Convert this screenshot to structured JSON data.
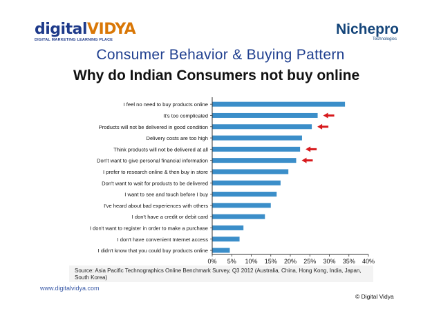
{
  "header": {
    "logo_left": {
      "word_a": "digital",
      "word_b": "VIDYA",
      "tagline": "DIGITAL MARKETING LEARNING PLACE"
    },
    "logo_right": {
      "word": "Nichepro",
      "sub": "Technologies"
    },
    "slide_title": "Consumer Behavior & Buying Pattern"
  },
  "chart_data": {
    "type": "bar",
    "orientation": "horizontal",
    "title": "Why do Indian Consumers not buy online",
    "categories": [
      "I feel no need to buy products online",
      "It's too complicated",
      "Products will not be delivered in good condition",
      "Delivery costs are too high",
      "Think products will not be delivered at all",
      "Don't want to give personal financial information",
      "I prefer to research online & then buy in store",
      "Don't want to wait for products to be delivered",
      "I want to see and touch before I buy",
      "I've heard about bad experiences with others",
      "I don't have a credit or debit card",
      "I don't want to register in order to make a purchase",
      "I don't have convenient Internet access",
      "I didn't know that you could buy products online"
    ],
    "values": [
      34,
      27,
      25.5,
      23,
      22.5,
      21.5,
      19.5,
      17.5,
      16.5,
      15,
      13.5,
      8,
      7,
      4.5
    ],
    "highlighted": [
      false,
      true,
      true,
      false,
      true,
      true,
      false,
      false,
      false,
      false,
      false,
      false,
      false,
      false
    ],
    "xlim": [
      0,
      40
    ],
    "xticks": [
      "0%",
      "5%",
      "10%",
      "15%",
      "20%",
      "25%",
      "30%",
      "35%",
      "40%"
    ],
    "bar_color": "#3b8ec9",
    "arrow_color": "#d7191c",
    "grid": false
  },
  "source": "Source: Asia Pacific Technographics Online Benchmark Survey, Q3 2012 (Australia, China, Hong Kong, India, Japan, South Korea)",
  "footer": {
    "website": "www.digitalvidya.com",
    "copyright": "© Digital Vidya"
  }
}
